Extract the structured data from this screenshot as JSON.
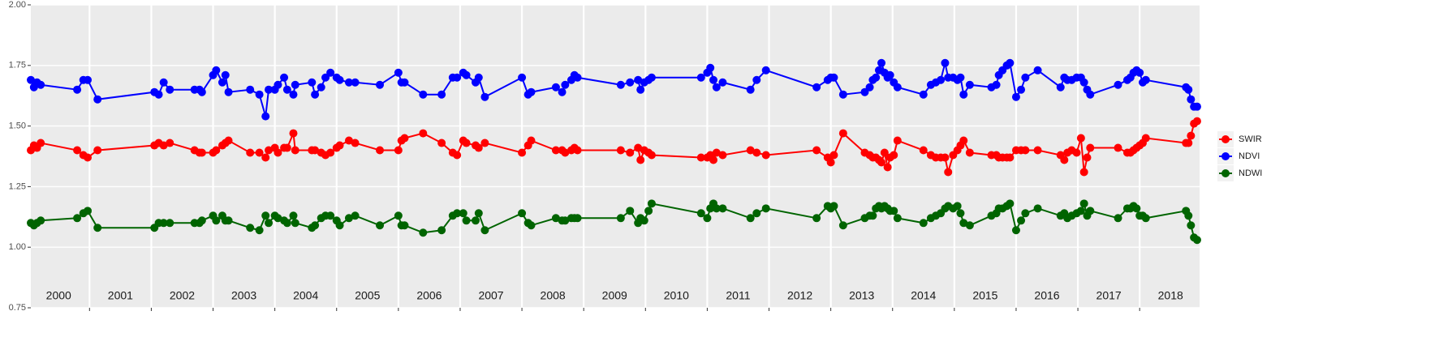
{
  "chart_data": {
    "type": "line",
    "x": [
      2000.05,
      2000.1,
      2000.15,
      2000.21,
      2000.8,
      2000.9,
      2000.97,
      2001.13,
      2002.05,
      2002.12,
      2002.2,
      2002.3,
      2002.7,
      2002.78,
      2002.82,
      2003.0,
      2003.05,
      2003.15,
      2003.2,
      2003.25,
      2003.6,
      2003.75,
      2003.85,
      2003.9,
      2004.0,
      2004.05,
      2004.15,
      2004.2,
      2004.3,
      2004.33,
      2004.6,
      2004.65,
      2004.75,
      2004.82,
      2004.9,
      2005.0,
      2005.05,
      2005.2,
      2005.3,
      2005.7,
      2006.0,
      2006.05,
      2006.1,
      2006.4,
      2006.7,
      2006.88,
      2006.95,
      2007.05,
      2007.1,
      2007.25,
      2007.3,
      2007.4,
      2008.0,
      2008.1,
      2008.15,
      2008.55,
      2008.65,
      2008.7,
      2008.8,
      2008.85,
      2008.9,
      2009.6,
      2009.75,
      2009.88,
      2009.92,
      2009.98,
      2010.05,
      2010.1,
      2010.9,
      2011.0,
      2011.05,
      2011.1,
      2011.15,
      2011.25,
      2011.7,
      2011.8,
      2011.95,
      2012.77,
      2012.95,
      2013.0,
      2013.05,
      2013.2,
      2013.55,
      2013.63,
      2013.68,
      2013.73,
      2013.78,
      2013.82,
      2013.87,
      2013.92,
      2013.96,
      2014.02,
      2014.08,
      2014.5,
      2014.62,
      2014.7,
      2014.78,
      2014.85,
      2014.9,
      2014.98,
      2015.05,
      2015.1,
      2015.15,
      2015.25,
      2015.6,
      2015.68,
      2015.72,
      2015.78,
      2015.85,
      2015.9,
      2016.0,
      2016.08,
      2016.15,
      2016.35,
      2016.72,
      2016.78,
      2016.83,
      2016.9,
      2016.98,
      2017.05,
      2017.1,
      2017.15,
      2017.2,
      2017.65,
      2017.8,
      2017.85,
      2017.9,
      2017.95,
      2018.0,
      2018.05,
      2018.1,
      2018.75,
      2018.79,
      2018.83,
      2018.88,
      2018.93
    ],
    "series": [
      {
        "name": "SWIR",
        "color": "#ff0000",
        "values": [
          1.4,
          1.42,
          1.41,
          1.43,
          1.4,
          1.38,
          1.37,
          1.4,
          1.42,
          1.43,
          1.42,
          1.43,
          1.4,
          1.39,
          1.39,
          1.39,
          1.4,
          1.42,
          1.43,
          1.44,
          1.39,
          1.39,
          1.37,
          1.4,
          1.41,
          1.39,
          1.41,
          1.41,
          1.47,
          1.4,
          1.4,
          1.4,
          1.39,
          1.38,
          1.39,
          1.41,
          1.42,
          1.44,
          1.43,
          1.4,
          1.4,
          1.44,
          1.45,
          1.47,
          1.43,
          1.39,
          1.38,
          1.44,
          1.43,
          1.42,
          1.41,
          1.43,
          1.39,
          1.42,
          1.44,
          1.4,
          1.4,
          1.39,
          1.4,
          1.41,
          1.4,
          1.4,
          1.39,
          1.41,
          1.36,
          1.4,
          1.39,
          1.38,
          1.37,
          1.37,
          1.38,
          1.36,
          1.39,
          1.38,
          1.4,
          1.39,
          1.38,
          1.4,
          1.37,
          1.35,
          1.38,
          1.47,
          1.39,
          1.38,
          1.37,
          1.37,
          1.36,
          1.35,
          1.39,
          1.33,
          1.37,
          1.38,
          1.44,
          1.4,
          1.38,
          1.37,
          1.37,
          1.37,
          1.31,
          1.38,
          1.4,
          1.42,
          1.44,
          1.39,
          1.38,
          1.38,
          1.37,
          1.37,
          1.37,
          1.37,
          1.4,
          1.4,
          1.4,
          1.4,
          1.38,
          1.36,
          1.39,
          1.4,
          1.39,
          1.45,
          1.31,
          1.37,
          1.41,
          1.41,
          1.39,
          1.39,
          1.4,
          1.41,
          1.42,
          1.43,
          1.45,
          1.43,
          1.43,
          1.46,
          1.51,
          1.52
        ]
      },
      {
        "name": "NDVI",
        "color": "#0000ff",
        "values": [
          1.69,
          1.66,
          1.68,
          1.67,
          1.65,
          1.69,
          1.69,
          1.61,
          1.64,
          1.63,
          1.68,
          1.65,
          1.65,
          1.65,
          1.64,
          1.71,
          1.73,
          1.68,
          1.71,
          1.64,
          1.65,
          1.63,
          1.54,
          1.65,
          1.65,
          1.67,
          1.7,
          1.65,
          1.63,
          1.67,
          1.68,
          1.63,
          1.66,
          1.7,
          1.72,
          1.7,
          1.69,
          1.68,
          1.68,
          1.67,
          1.72,
          1.68,
          1.68,
          1.63,
          1.63,
          1.7,
          1.7,
          1.72,
          1.71,
          1.68,
          1.7,
          1.62,
          1.7,
          1.63,
          1.64,
          1.66,
          1.64,
          1.67,
          1.69,
          1.71,
          1.7,
          1.67,
          1.68,
          1.69,
          1.65,
          1.68,
          1.69,
          1.7,
          1.7,
          1.72,
          1.74,
          1.69,
          1.66,
          1.68,
          1.65,
          1.69,
          1.73,
          1.66,
          1.69,
          1.7,
          1.7,
          1.63,
          1.64,
          1.66,
          1.69,
          1.7,
          1.73,
          1.76,
          1.72,
          1.7,
          1.71,
          1.68,
          1.66,
          1.63,
          1.67,
          1.68,
          1.69,
          1.76,
          1.7,
          1.7,
          1.69,
          1.7,
          1.63,
          1.67,
          1.66,
          1.67,
          1.71,
          1.73,
          1.75,
          1.76,
          1.62,
          1.65,
          1.7,
          1.73,
          1.66,
          1.7,
          1.69,
          1.69,
          1.7,
          1.7,
          1.68,
          1.65,
          1.63,
          1.67,
          1.69,
          1.7,
          1.72,
          1.73,
          1.72,
          1.68,
          1.69,
          1.66,
          1.65,
          1.61,
          1.58,
          1.58
        ]
      },
      {
        "name": "NDWI",
        "color": "#006400",
        "values": [
          1.1,
          1.09,
          1.1,
          1.11,
          1.12,
          1.14,
          1.15,
          1.08,
          1.08,
          1.1,
          1.1,
          1.1,
          1.1,
          1.1,
          1.11,
          1.13,
          1.11,
          1.13,
          1.11,
          1.11,
          1.08,
          1.07,
          1.13,
          1.1,
          1.13,
          1.12,
          1.11,
          1.1,
          1.13,
          1.1,
          1.08,
          1.09,
          1.12,
          1.13,
          1.13,
          1.11,
          1.09,
          1.12,
          1.13,
          1.09,
          1.13,
          1.09,
          1.09,
          1.06,
          1.07,
          1.13,
          1.14,
          1.14,
          1.11,
          1.11,
          1.14,
          1.07,
          1.14,
          1.1,
          1.09,
          1.12,
          1.11,
          1.11,
          1.12,
          1.12,
          1.12,
          1.12,
          1.15,
          1.1,
          1.12,
          1.11,
          1.15,
          1.18,
          1.14,
          1.12,
          1.16,
          1.18,
          1.16,
          1.16,
          1.12,
          1.14,
          1.16,
          1.12,
          1.17,
          1.16,
          1.17,
          1.09,
          1.12,
          1.13,
          1.13,
          1.16,
          1.17,
          1.16,
          1.17,
          1.16,
          1.15,
          1.15,
          1.12,
          1.1,
          1.12,
          1.13,
          1.14,
          1.16,
          1.17,
          1.16,
          1.17,
          1.14,
          1.1,
          1.09,
          1.13,
          1.14,
          1.16,
          1.16,
          1.17,
          1.18,
          1.07,
          1.11,
          1.14,
          1.16,
          1.13,
          1.14,
          1.12,
          1.13,
          1.14,
          1.15,
          1.18,
          1.13,
          1.15,
          1.12,
          1.16,
          1.16,
          1.17,
          1.16,
          1.13,
          1.13,
          1.12,
          1.15,
          1.13,
          1.09,
          1.04,
          1.03
        ]
      }
    ],
    "annotations": [
      {
        "text": "2000",
        "x": 2000.5
      },
      {
        "text": "2001",
        "x": 2001.5
      },
      {
        "text": "2002",
        "x": 2002.5
      },
      {
        "text": "2003",
        "x": 2003.5
      },
      {
        "text": "2004",
        "x": 2004.5
      },
      {
        "text": "2005",
        "x": 2005.5
      },
      {
        "text": "2006",
        "x": 2006.5
      },
      {
        "text": "2007",
        "x": 2007.5
      },
      {
        "text": "2008",
        "x": 2008.5
      },
      {
        "text": "2009",
        "x": 2009.5
      },
      {
        "text": "2010",
        "x": 2010.5
      },
      {
        "text": "2011",
        "x": 2011.5
      },
      {
        "text": "2012",
        "x": 2012.5
      },
      {
        "text": "2013",
        "x": 2013.5
      },
      {
        "text": "2014",
        "x": 2014.5
      },
      {
        "text": "2015",
        "x": 2015.5
      },
      {
        "text": "2016",
        "x": 2016.5
      },
      {
        "text": "2017",
        "x": 2017.5
      },
      {
        "text": "2018",
        "x": 2018.5
      }
    ],
    "xlim": [
      2000.05,
      2018.97
    ],
    "xticks": [
      2001,
      2002,
      2003,
      2004,
      2005,
      2006,
      2007,
      2008,
      2009,
      2010,
      2011,
      2012,
      2013,
      2014,
      2015,
      2016,
      2017,
      2018
    ],
    "ylim": [
      0.75,
      2.0
    ],
    "yticks": [
      0.75,
      {
        "value": 1,
        "label": "1.00"
      },
      1.25,
      {
        "value": 1.5,
        "label": "1.50"
      },
      1.75,
      {
        "value": 2,
        "label": "2.00"
      }
    ],
    "grid": true,
    "legend": "right"
  }
}
